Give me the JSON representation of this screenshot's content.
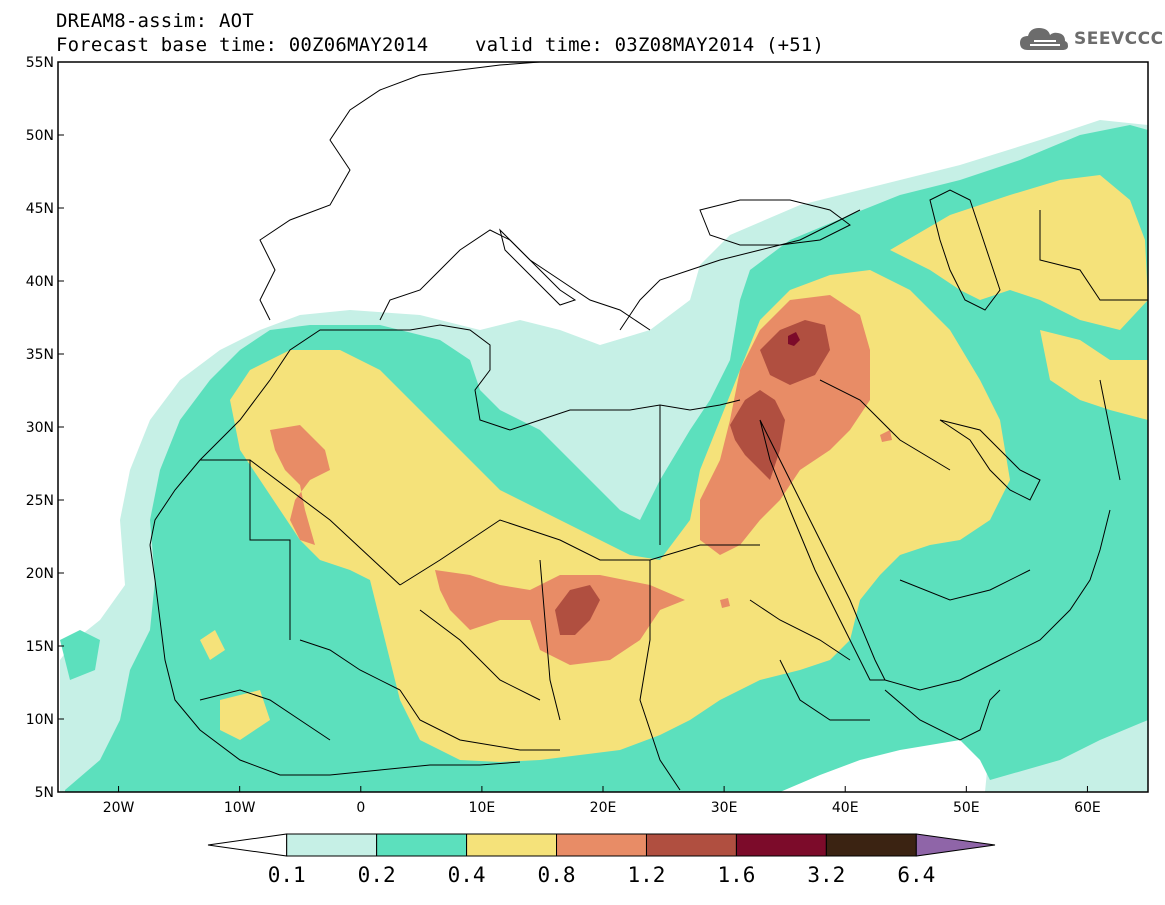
{
  "header": {
    "title": "DREAM8-assim: AOT",
    "subtitle": "Forecast base time: 00Z06MAY2014    valid time: 03Z08MAY2014 (+51)"
  },
  "logo": {
    "text": "SEEVCCC",
    "icon": "cloud-icon"
  },
  "map": {
    "lon_range": [
      -25,
      65
    ],
    "lat_range": [
      5,
      55
    ],
    "lat_ticks": [
      {
        "value": 55,
        "label": "55N"
      },
      {
        "value": 50,
        "label": "50N"
      },
      {
        "value": 45,
        "label": "45N"
      },
      {
        "value": 40,
        "label": "40N"
      },
      {
        "value": 35,
        "label": "35N"
      },
      {
        "value": 30,
        "label": "30N"
      },
      {
        "value": 25,
        "label": "25N"
      },
      {
        "value": 20,
        "label": "20N"
      },
      {
        "value": 15,
        "label": "15N"
      },
      {
        "value": 10,
        "label": "10N"
      },
      {
        "value": 5,
        "label": "5N"
      }
    ],
    "lon_ticks": [
      {
        "value": -20,
        "label": "20W"
      },
      {
        "value": -10,
        "label": "10W"
      },
      {
        "value": 0,
        "label": "0"
      },
      {
        "value": 10,
        "label": "10E"
      },
      {
        "value": 20,
        "label": "20E"
      },
      {
        "value": 30,
        "label": "30E"
      },
      {
        "value": 40,
        "label": "40E"
      },
      {
        "value": 50,
        "label": "50E"
      },
      {
        "value": 60,
        "label": "60E"
      }
    ]
  },
  "colorbar": {
    "levels": [
      "0.1",
      "0.2",
      "0.4",
      "0.8",
      "1.2",
      "1.6",
      "3.2",
      "6.4"
    ],
    "colors": [
      "#ffffff",
      "#c6f0e6",
      "#5ce0bd",
      "#f5e27a",
      "#e88c66",
      "#b04f40",
      "#7c0b2a",
      "#3b2312",
      "#8f65a8"
    ]
  }
}
